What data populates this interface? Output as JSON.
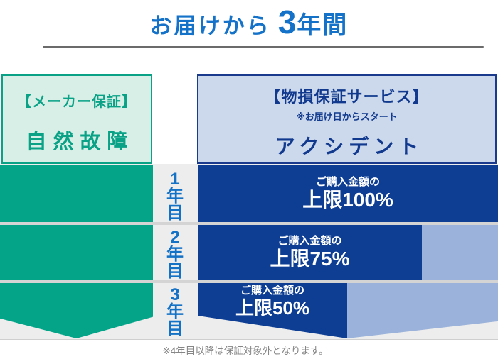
{
  "title": {
    "prefix": "お届けから",
    "number": "3",
    "suffix": "年間"
  },
  "columns": {
    "manufacturer": {
      "heading": "【メーカー保証】",
      "subject": "自然故障"
    },
    "damage": {
      "heading": "【物損保証サービス】",
      "note": "※お届け日からスタート",
      "subject": "アクシデント"
    }
  },
  "years": [
    {
      "label": "1年目",
      "coverage_prefix": "ご購入金額の",
      "coverage_limit": "上限100%"
    },
    {
      "label": "2年目",
      "coverage_prefix": "ご購入金額の",
      "coverage_limit": "上限75%"
    },
    {
      "label": "3年目",
      "coverage_prefix": "ご購入金額の",
      "coverage_limit": "上限50%"
    }
  ],
  "footnote": "※4年目以降は保証対象外となります。",
  "colors": {
    "title_blue": "#1472c8",
    "green_fill": "#04a489",
    "green_light_bg": "#d7efe6",
    "green_text": "#0aa287",
    "navy_fill": "#0d3e94",
    "navy_text": "#113a8e",
    "blue_light_bg": "#ccd8ec",
    "steel_blue_fill": "#9bb3da",
    "year_label_blue": "#1371c6",
    "backdrop_gray": "#ededed",
    "footnote_gray": "#868686"
  }
}
